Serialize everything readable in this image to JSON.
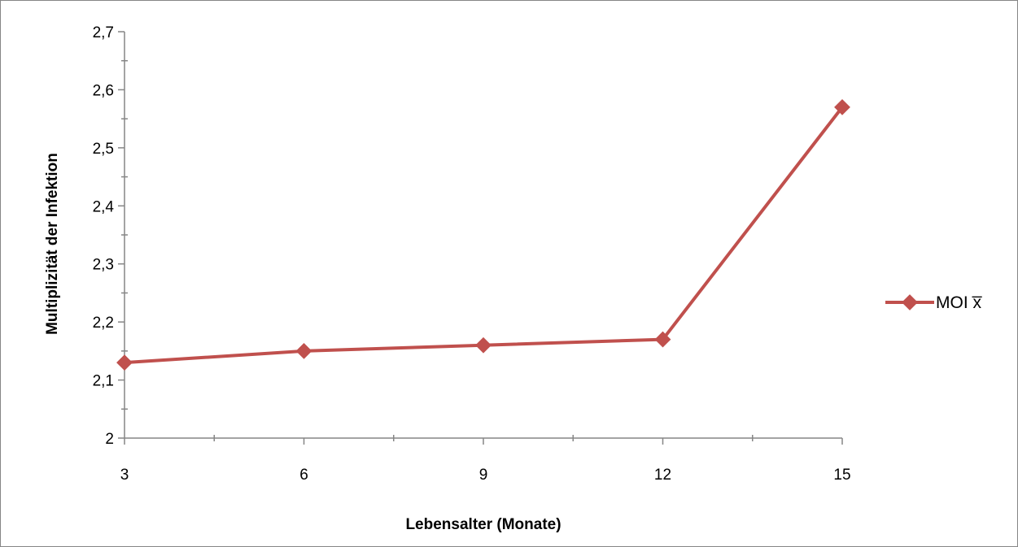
{
  "chart_data": {
    "type": "line",
    "x": [
      3,
      6,
      9,
      12,
      15
    ],
    "series": [
      {
        "name": "MOI x̅",
        "values": [
          2.13,
          2.15,
          2.16,
          2.17,
          2.57
        ]
      }
    ],
    "x_ticks": [
      "3",
      "6",
      "9",
      "12",
      "15"
    ],
    "y_ticks": [
      "2",
      "2,1",
      "2,2",
      "2,3",
      "2,4",
      "2,5",
      "2,6",
      "2,7"
    ],
    "xlabel": "Lebensalter (Monate)",
    "ylabel": "Multiplizität der Infektion",
    "xlim": [
      3,
      15
    ],
    "ylim": [
      2,
      2.7
    ],
    "grid": false,
    "legend_position": "right",
    "colors": {
      "series": "#c0504d",
      "axis": "#868686",
      "frame": "#868686"
    }
  }
}
